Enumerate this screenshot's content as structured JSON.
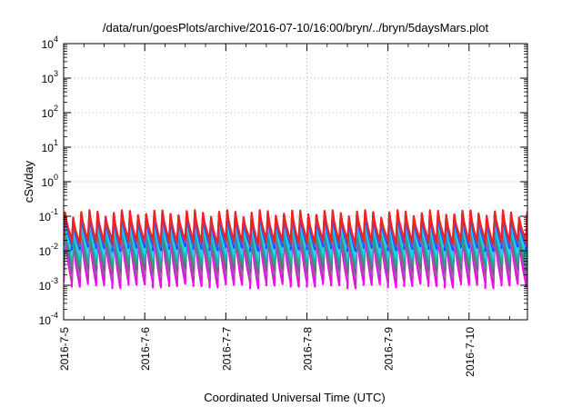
{
  "chart_data": {
    "type": "line",
    "title": "/data/run/goesPlots/archive/2016-07-10/16:00/bryn/../bryn/5daysMars.plot",
    "xlabel": "Coordinated Universal Time (UTC)",
    "ylabel": "cSv/day",
    "yscale": "log",
    "ylim": [
      0.0001,
      10000
    ],
    "xlim_days": [
      0,
      5.72
    ],
    "grid": true,
    "y_ticks": [
      {
        "base": "10",
        "exp": "-4"
      },
      {
        "base": "10",
        "exp": "-3"
      },
      {
        "base": "10",
        "exp": "-2"
      },
      {
        "base": "10",
        "exp": "-1"
      },
      {
        "base": "10",
        "exp": "0"
      },
      {
        "base": "10",
        "exp": "1"
      },
      {
        "base": "10",
        "exp": "2"
      },
      {
        "base": "10",
        "exp": "3"
      },
      {
        "base": "10",
        "exp": "4"
      }
    ],
    "x_ticks": [
      "2016-7-5",
      "2016-7-6",
      "2016-7-7",
      "2016-7-8",
      "2016-7-9",
      "2016-7-10"
    ],
    "pattern": {
      "period_days": 0.1,
      "count": 58,
      "peak_range": [
        0.05,
        0.15
      ],
      "trough_range": [
        0.001,
        0.02
      ]
    },
    "series": [
      {
        "color": "#ff00ff",
        "peak": 0.03,
        "trough": 0.001
      },
      {
        "color": "#cc22cc",
        "peak": 0.034,
        "trough": 0.0014
      },
      {
        "color": "#996699",
        "peak": 0.04,
        "trough": 0.002
      },
      {
        "color": "#7a5c8c",
        "peak": 0.045,
        "trough": 0.0028
      },
      {
        "color": "#339988",
        "peak": 0.055,
        "trough": 0.004
      },
      {
        "color": "#22aa99",
        "peak": 0.06,
        "trough": 0.005
      },
      {
        "color": "#00cccc",
        "peak": 0.07,
        "trough": 0.0065
      },
      {
        "color": "#33ccee",
        "peak": 0.08,
        "trough": 0.008
      },
      {
        "color": "#2244ff",
        "peak": 0.1,
        "trough": 0.012
      },
      {
        "color": "#4466ee",
        "peak": 0.11,
        "trough": 0.015
      },
      {
        "color": "#ee2222",
        "peak": 0.12,
        "trough": 0.018
      }
    ]
  }
}
